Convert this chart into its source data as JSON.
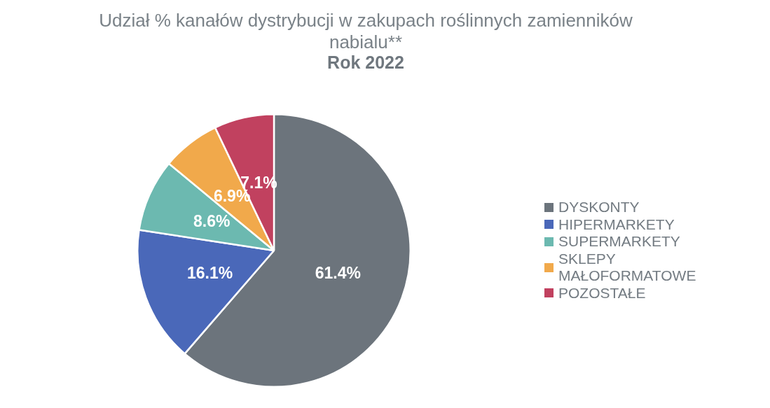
{
  "chart_data": {
    "type": "pie",
    "title": "Udział % kanałów dystrybucji w zakupach roślinnych zamienników nabialu**",
    "subtitle": "Rok 2022",
    "categories": [
      "DYSKONTY",
      "HIPERMARKETY",
      "SUPERMARKETY",
      "SKLEPY MAŁOFORMATOWE",
      "POZOSTAŁE"
    ],
    "values": [
      61.4,
      16.1,
      8.6,
      6.9,
      7.1
    ],
    "colors": [
      "#6c747c",
      "#4a68b9",
      "#6cb9b0",
      "#f1a94b",
      "#c1415f"
    ],
    "value_labels": [
      "61.4%",
      "16.1%",
      "8.6%",
      "6.9%",
      "7.1%"
    ],
    "legend": "right"
  }
}
